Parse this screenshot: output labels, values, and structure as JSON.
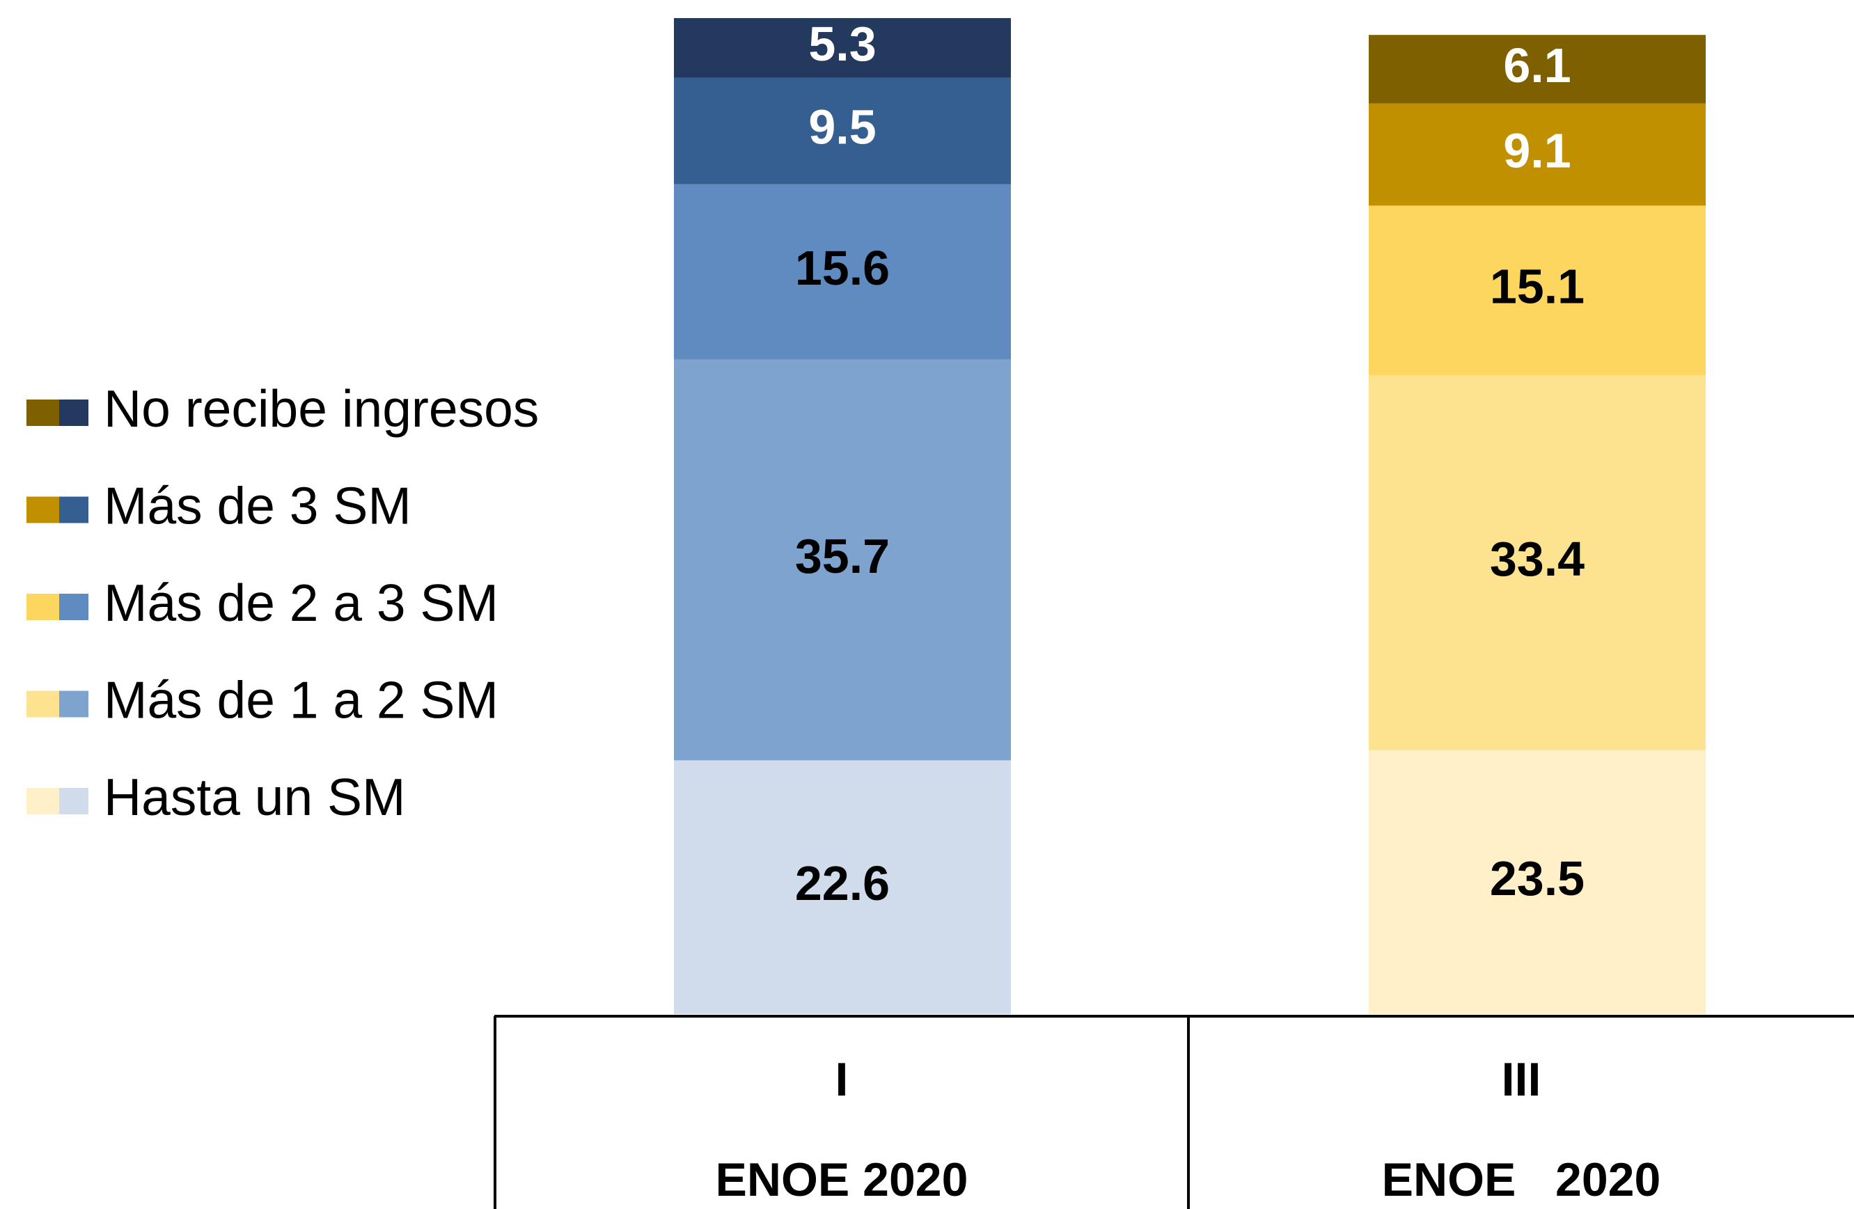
{
  "chart_data": {
    "type": "stacked_bar",
    "categories": [
      "I",
      "III"
    ],
    "category_sublabels": [
      "ENOE 2020",
      "ENOE   2020"
    ],
    "ylim": [
      0,
      90
    ],
    "series": [
      {
        "name": "Hasta un SM",
        "colors": [
          "#d0dcec",
          "#fff0c8"
        ],
        "label_color": "#000000",
        "values": [
          22.6,
          23.5
        ]
      },
      {
        "name": "Más de 1 a 2 SM",
        "colors": [
          "#7ea3cf",
          "#fde290"
        ],
        "label_color": "#000000",
        "values": [
          35.7,
          33.4
        ]
      },
      {
        "name": "Más de 2 a 3 SM",
        "colors": [
          "#608bc1",
          "#fdd660"
        ],
        "label_color": "#000000",
        "values": [
          15.6,
          15.1
        ]
      },
      {
        "name": "Más de 3 SM",
        "colors": [
          "#365f91",
          "#c09000"
        ],
        "label_color": "#ffffff",
        "values": [
          9.5,
          9.1
        ]
      },
      {
        "name": "No recibe ingresos",
        "colors": [
          "#233a5e",
          "#7f6000"
        ],
        "label_color": "#ffffff",
        "values": [
          5.3,
          6.1
        ]
      }
    ]
  }
}
